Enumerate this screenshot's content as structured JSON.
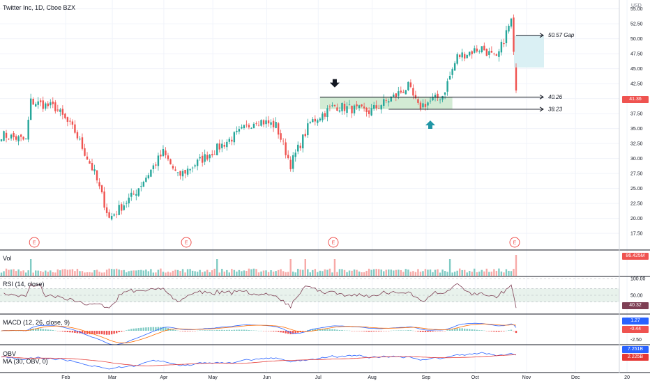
{
  "header": {
    "title": "Twitter Inc, 1D, Cboe BZX",
    "currency": "USD"
  },
  "colors": {
    "up": "#26a69a",
    "down": "#ef5350",
    "zone_fill": "#c8e6c9",
    "gap_fill": "#d6eef3",
    "marker_black": "#131722",
    "marker_teal": "#2196a6",
    "rsi_line": "#7e3f54",
    "rsi_band": "#d9eadf",
    "macd_line": "#2962ff",
    "signal_line": "#ff6d00",
    "obv_line": "#2962ff",
    "obv_ma_line": "#e53935",
    "earnings": "#ef5350"
  },
  "chart_data": [
    {
      "type": "candlestick",
      "pane": "price",
      "y_ticks": [
        "55.00",
        "52.50",
        "50.00",
        "47.50",
        "45.00",
        "42.50",
        "40.00",
        "37.50",
        "35.00",
        "32.50",
        "30.00",
        "27.50",
        "25.00",
        "22.50",
        "20.00",
        "17.50"
      ],
      "ylim": [
        16,
        56
      ],
      "x_ticks": [
        "Feb",
        "Mar",
        "Apr",
        "May",
        "Jun",
        "Jul",
        "Aug",
        "Sep",
        "Oct",
        "Nov",
        "Dec",
        "20"
      ],
      "last_price": "41.36",
      "trading_days": 210,
      "anchors": [
        {
          "day": 0,
          "close": 34.0
        },
        {
          "day": 10,
          "close": 33.0
        },
        {
          "day": 12,
          "close": 39.5
        },
        {
          "day": 22,
          "close": 38.5
        },
        {
          "day": 30,
          "close": 34.5
        },
        {
          "day": 38,
          "close": 27.5
        },
        {
          "day": 44,
          "close": 20.0
        },
        {
          "day": 54,
          "close": 24.0
        },
        {
          "day": 66,
          "close": 31.0
        },
        {
          "day": 72,
          "close": 27.0
        },
        {
          "day": 84,
          "close": 30.5
        },
        {
          "day": 96,
          "close": 34.0
        },
        {
          "day": 104,
          "close": 36.5
        },
        {
          "day": 112,
          "close": 35.5
        },
        {
          "day": 118,
          "close": 29.0
        },
        {
          "day": 126,
          "close": 36.0
        },
        {
          "day": 136,
          "close": 38.8
        },
        {
          "day": 150,
          "close": 37.8
        },
        {
          "day": 160,
          "close": 40.3
        },
        {
          "day": 166,
          "close": 42.0
        },
        {
          "day": 170,
          "close": 38.6
        },
        {
          "day": 180,
          "close": 40.5
        },
        {
          "day": 186,
          "close": 47.0
        },
        {
          "day": 196,
          "close": 48.5
        },
        {
          "day": 202,
          "close": 46.5
        },
        {
          "day": 206,
          "close": 51.0
        },
        {
          "day": 208,
          "close": 53.0
        },
        {
          "day": 210,
          "close": 41.36
        }
      ],
      "earnings_marker": "E",
      "earnings_days": [
        14,
        76,
        136,
        210
      ],
      "annotations": [
        {
          "type": "level",
          "label": "40.26",
          "value": 40.26
        },
        {
          "type": "level",
          "label": "38.23",
          "value": 38.23
        },
        {
          "type": "level",
          "label": "50.57 Gap",
          "value": 50.57
        },
        {
          "type": "zone",
          "from": 38.23,
          "to": 40.26
        },
        {
          "type": "gap",
          "from": 45.2,
          "to": 50.57
        },
        {
          "type": "arrow-down",
          "day": 136
        },
        {
          "type": "arrow-up",
          "day": 175
        }
      ]
    },
    {
      "type": "bar",
      "pane": "volume",
      "title": "Vol",
      "last_value": "86.425M"
    },
    {
      "type": "line",
      "pane": "rsi",
      "title": "RSI (14, close)",
      "y_ticks": [
        "100.00",
        "50.00"
      ],
      "band": [
        30,
        70
      ],
      "last_value": "40.32"
    },
    {
      "type": "line",
      "pane": "macd",
      "title": "MACD (12, 26, close, 9)",
      "y_ticks": [
        "2.50",
        "0.00",
        "-2.50"
      ],
      "last_macd": "1.27",
      "last_signal": "-0.44"
    },
    {
      "type": "line",
      "pane": "obv",
      "title_obv": "OBV",
      "title_ma": "MA (30, OBV, 0)",
      "last_obv": "7.251B",
      "last_ma": "2.225B"
    }
  ]
}
